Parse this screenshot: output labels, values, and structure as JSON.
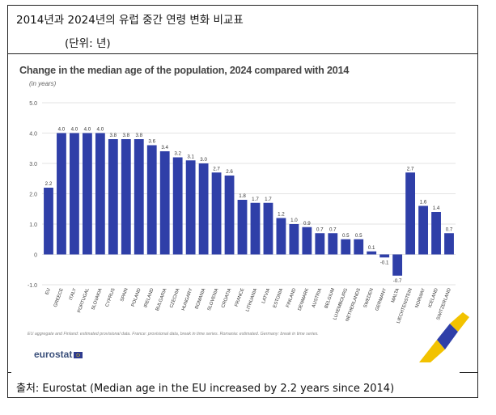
{
  "header": {
    "title": "2014년과 2024년의 유럽 중간 연령 변화 비교표",
    "unit_note": "(단위: 년)"
  },
  "chart_data": {
    "type": "bar",
    "title": "Change in the median age of the population, 2024 compared with 2014",
    "unit_label": "(in years)",
    "categories": [
      "EU",
      "GREECE",
      "ITALY",
      "PORTUGAL",
      "SLOVAKIA",
      "CYPRUS",
      "SPAIN",
      "POLAND",
      "IRELAND",
      "BULGARIA",
      "CZECHIA",
      "HUNGARY",
      "ROMANIA",
      "SLOVENIA",
      "CROATIA",
      "FRANCE",
      "LITHUANIA",
      "LATVIA",
      "ESTONIA",
      "FINLAND",
      "DENMARK",
      "AUSTRIA",
      "BELGIUM",
      "LUXEMBOURG",
      "NETHERLANDS",
      "SWEDEN",
      "GERMANY",
      "MALTA",
      "LIECHTENSTEIN",
      "NORWAY",
      "ICELAND",
      "SWITZERLAND"
    ],
    "values": [
      2.2,
      4.0,
      4.0,
      4.0,
      4.0,
      3.8,
      3.8,
      3.8,
      3.6,
      3.4,
      3.2,
      3.1,
      3.0,
      2.7,
      2.6,
      1.8,
      1.7,
      1.7,
      1.2,
      1.0,
      0.9,
      0.7,
      0.7,
      0.5,
      0.5,
      0.1,
      -0.1,
      -0.7,
      2.7,
      1.6,
      1.4,
      0.7
    ],
    "value_labels": [
      "2.2",
      "4.0",
      "4.0",
      "4.0",
      "4.0",
      "3.8",
      "3.8",
      "3.8",
      "3.6",
      "3.4",
      "3.2",
      "3.1",
      "3.0",
      "2.7",
      "2.6",
      "1.8",
      "1.7",
      "1.7",
      "1.2",
      "1.0",
      "0.9",
      "0.7",
      "0.7",
      "0.5",
      "0.5",
      "0.1",
      "-0.1",
      "-0.7",
      "2.7",
      "1.6",
      "1.4",
      "0.7"
    ],
    "y_ticks": [
      "5.0",
      "4.0",
      "3.0",
      "2.0",
      "1.0",
      "0",
      "-1.0"
    ],
    "ylim": [
      -1.0,
      5.0
    ],
    "grid": true,
    "bar_color": "#2f3fa8",
    "footnote": "EU aggregate and Finland: estimated provisional data. France: provisional data, break in time series. Romania: estimated. Germany: break in time series."
  },
  "brand": {
    "logo_text": "eurostat"
  },
  "source": {
    "text": "출처: Eurostat (Median age in the EU increased by 2.2 years since 2014)"
  }
}
